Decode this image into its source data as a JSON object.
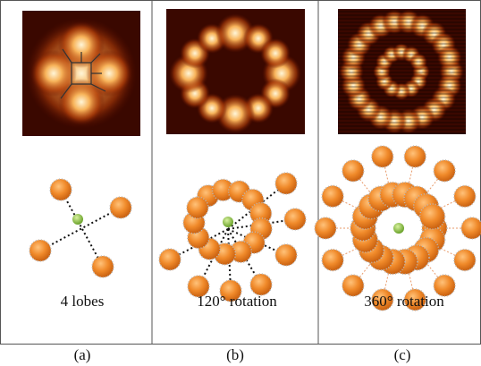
{
  "panels": [
    {
      "caption": "4 lobes",
      "label": "(a)"
    },
    {
      "caption": "120° rotation",
      "label": "(b)"
    },
    {
      "caption": "360° rotation",
      "label": "(c)"
    }
  ]
}
